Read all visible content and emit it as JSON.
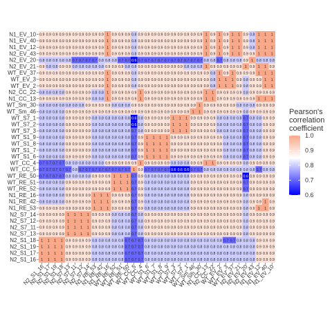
{
  "chart_data": {
    "type": "heatmap",
    "title": "",
    "xlabel": "",
    "ylabel": "",
    "row_labels": [
      "N1_EV_10",
      "N1_EV_40",
      "N1_EV_12",
      "N2_EV_43",
      "N2_EV_20",
      "N2_EV_21",
      "WT_EV_37",
      "WT_EV_3",
      "WT_EV_2",
      "N2_CC_22",
      "N1_CC_13",
      "WT_Sm_30",
      "WT_Sm_46",
      "WT_S7_1",
      "WT_S7_2",
      "WT_S7_3",
      "WT_S1_9",
      "WT_S1_8",
      "WT_S1_7",
      "WT_S1_6",
      "WT_CC_4",
      "WT_CC_5",
      "WT_RE_50",
      "WT_RE_51",
      "WT_RE_52",
      "N1_RE_16",
      "N1_RE_42",
      "N1_RE_53",
      "N2_S7_14",
      "N2_S7_12",
      "N2_S7_11",
      "N2_S7_13",
      "N2_S1_18",
      "N2_S1_19",
      "N2_S1_17",
      "N2_S1_16"
    ],
    "col_labels": [
      "N2_S1_16",
      "N2_S1_17",
      "N2_S1_19",
      "N2_S1_18",
      "N2_S7_13",
      "N2_S7_11",
      "N2_S7_12",
      "N2_S7_14",
      "N1_RE_53",
      "N1_RE_42",
      "N1_RE_16",
      "WT_RE_52",
      "WT_RE_51",
      "WT_RE_50",
      "WT_CC_5",
      "WT_CC_4",
      "WT_S1_6",
      "WT_S1_7",
      "WT_S1_8",
      "WT_S1_9",
      "WT_S7_3",
      "WT_S7_2",
      "WT_S7_1",
      "WT_Sm_46",
      "WT_Sm_30",
      "N1_CC_13",
      "N2_CC_22",
      "WT_EV_2",
      "WT_EV_3",
      "WT_EV_37",
      "N2_EV_21",
      "N2_EV_20",
      "N2_EV_43",
      "N1_EV_12",
      "N1_EV_40",
      "N1_EV_10"
    ],
    "legend": {
      "title": "Pearson's\ncorrelation\ncoefficient",
      "ticks": [
        1.0,
        0.9,
        0.8,
        0.7,
        0.6
      ],
      "tick_labels": [
        "1.0",
        "0.9",
        "0.8",
        "0.7",
        "0.6"
      ],
      "range": [
        0.6,
        1.0
      ],
      "position": "right"
    },
    "colors": {
      "low": "#0000ff",
      "mid": "#ffffff",
      "high": "#f8a889",
      "midpoint": 0.85
    },
    "grid": false,
    "values": [
      [
        0.9,
        0.9,
        0.9,
        0.9,
        0.9,
        0.9,
        0.9,
        0.9,
        0.9,
        0.9,
        1,
        0.9,
        0.9,
        0.9,
        0.8,
        0.9,
        0.9,
        0.9,
        0.9,
        0.9,
        0.9,
        0.9,
        0.9,
        0.9,
        0.9,
        1,
        0.9,
        1,
        0.9,
        1,
        1,
        0.9,
        0.8,
        1,
        1,
        1
      ],
      [
        0.9,
        0.9,
        0.9,
        0.9,
        0.9,
        0.9,
        0.9,
        0.9,
        0.9,
        0.9,
        1,
        0.9,
        0.9,
        0.9,
        0.8,
        0.9,
        0.9,
        0.9,
        0.9,
        0.9,
        0.9,
        0.9,
        0.9,
        0.9,
        0.9,
        1,
        0.9,
        1,
        0.9,
        1,
        1,
        0.9,
        0.8,
        1,
        1,
        1
      ],
      [
        0.9,
        0.9,
        0.9,
        0.9,
        0.9,
        0.9,
        0.9,
        0.9,
        0.9,
        0.9,
        1,
        0.9,
        0.9,
        0.9,
        0.8,
        0.9,
        0.9,
        0.9,
        0.9,
        0.9,
        0.9,
        0.9,
        0.9,
        0.9,
        0.9,
        1,
        0.9,
        1,
        0.9,
        1,
        1,
        0.9,
        0.8,
        1,
        1,
        1
      ],
      [
        0.9,
        0.9,
        0.9,
        0.9,
        0.9,
        0.9,
        0.9,
        0.9,
        0.9,
        0.9,
        1,
        0.9,
        0.9,
        0.9,
        0.8,
        0.9,
        0.9,
        0.9,
        0.9,
        0.9,
        0.9,
        0.9,
        0.9,
        0.9,
        0.9,
        1,
        0.9,
        1,
        0.9,
        1,
        1,
        0.9,
        0.9,
        1,
        1,
        1
      ],
      [
        0.8,
        0.8,
        0.8,
        0.8,
        0.8,
        0.7,
        0.7,
        0.7,
        0.7,
        0.8,
        0.8,
        0.8,
        0.7,
        0.7,
        0.6,
        0.7,
        0.7,
        0.7,
        0.7,
        0.7,
        0.7,
        0.7,
        0.7,
        0.7,
        0.7,
        0.8,
        0.8,
        0.7,
        0.8,
        0.8,
        0.8,
        0.9,
        1,
        0.8,
        0.8,
        0.8
      ],
      [
        0.9,
        0.8,
        0.8,
        0.9,
        0.9,
        0.8,
        0.8,
        0.8,
        0.8,
        0.8,
        0.9,
        0.9,
        0.9,
        0.8,
        0.8,
        0.9,
        0.9,
        0.9,
        0.9,
        0.9,
        0.9,
        0.9,
        0.8,
        0.8,
        0.8,
        1,
        0.9,
        0.9,
        0.9,
        0.9,
        0.9,
        1,
        0.9,
        1,
        1,
        0.9
      ],
      [
        0.9,
        0.9,
        0.9,
        0.9,
        0.9,
        0.9,
        0.9,
        0.9,
        0.9,
        0.9,
        1,
        0.9,
        0.9,
        0.9,
        0.8,
        0.9,
        0.9,
        0.9,
        0.9,
        0.9,
        0.9,
        0.9,
        0.9,
        0.9,
        0.9,
        0.9,
        0.8,
        1,
        0.9,
        1,
        0.9,
        0.9,
        0.9,
        1,
        1,
        1
      ],
      [
        0.9,
        0.9,
        0.9,
        0.9,
        0.9,
        0.9,
        0.9,
        0.9,
        0.9,
        0.9,
        1,
        0.9,
        0.9,
        0.9,
        0.8,
        0.9,
        0.9,
        0.9,
        0.9,
        0.9,
        0.9,
        0.9,
        0.9,
        0.9,
        0.9,
        0.9,
        0.8,
        1,
        1,
        1,
        0.9,
        0.8,
        0.9,
        0.9,
        1,
        1
      ],
      [
        0.9,
        0.9,
        0.9,
        0.9,
        0.9,
        0.9,
        0.9,
        0.9,
        0.9,
        0.9,
        1,
        0.9,
        0.9,
        0.9,
        0.8,
        0.9,
        0.9,
        0.9,
        0.9,
        0.9,
        0.9,
        0.9,
        0.9,
        0.9,
        0.9,
        0.9,
        0.8,
        1,
        1,
        1,
        0.9,
        0.8,
        0.9,
        0.9,
        1,
        1
      ],
      [
        0.8,
        0.8,
        0.8,
        0.8,
        0.9,
        0.9,
        0.9,
        0.9,
        0.8,
        0.8,
        1,
        0.9,
        0.9,
        0.9,
        0.9,
        1,
        0.9,
        0.9,
        0.9,
        0.9,
        0.9,
        0.9,
        0.9,
        0.9,
        0.9,
        1,
        1,
        0.9,
        0.9,
        0.9,
        0.9,
        0.8,
        0.9,
        0.9,
        0.9,
        0.9
      ],
      [
        0.9,
        0.9,
        0.9,
        0.9,
        0.9,
        0.9,
        0.9,
        0.9,
        0.8,
        0.8,
        1,
        0.9,
        0.9,
        0.9,
        0.9,
        1,
        0.9,
        0.9,
        0.9,
        0.9,
        0.9,
        0.9,
        0.9,
        0.9,
        0.9,
        1,
        1,
        0.9,
        0.9,
        0.9,
        0.9,
        0.9,
        0.9,
        1,
        1,
        1
      ],
      [
        0.8,
        0.8,
        0.8,
        0.8,
        0.8,
        0.8,
        0.8,
        0.9,
        0.9,
        0.9,
        0.9,
        0.8,
        0.8,
        0.8,
        0.9,
        0.9,
        0.9,
        0.9,
        0.9,
        0.9,
        0.9,
        0.9,
        0.9,
        0.9,
        1,
        0.9,
        0.9,
        0.9,
        0.9,
        0.9,
        0.8,
        0.8,
        0.8,
        0.9,
        0.9,
        0.9
      ],
      [
        0.8,
        0.8,
        0.8,
        0.8,
        0.9,
        0.9,
        0.9,
        0.9,
        0.9,
        0.9,
        0.9,
        0.9,
        0.9,
        0.9,
        0.9,
        0.9,
        0.9,
        0.9,
        0.9,
        0.9,
        0.9,
        0.9,
        0.9,
        1,
        1,
        0.9,
        0.9,
        0.9,
        0.9,
        0.9,
        0.9,
        0.8,
        0.9,
        0.9,
        0.9,
        0.9
      ],
      [
        0.8,
        0.8,
        0.8,
        0.8,
        0.9,
        0.9,
        0.9,
        0.9,
        0.8,
        0.8,
        0.8,
        0.8,
        0.8,
        0.8,
        0.6,
        0.8,
        0.9,
        0.9,
        0.9,
        0.9,
        1,
        1,
        1,
        0.9,
        0.9,
        0.9,
        0.9,
        0.8,
        0.8,
        0.8,
        0.8,
        0.7,
        0.8,
        0.8,
        0.9,
        0.9
      ],
      [
        0.8,
        0.8,
        0.8,
        0.8,
        0.9,
        0.9,
        0.9,
        0.9,
        0.8,
        0.8,
        0.8,
        0.8,
        0.8,
        0.8,
        0.6,
        0.8,
        0.9,
        0.9,
        0.9,
        0.9,
        1,
        1,
        1,
        0.9,
        0.9,
        0.9,
        0.9,
        0.8,
        0.8,
        0.8,
        0.8,
        0.7,
        0.8,
        0.8,
        0.9,
        0.9
      ],
      [
        0.8,
        0.8,
        0.8,
        0.8,
        0.9,
        0.9,
        0.9,
        0.9,
        0.8,
        0.8,
        0.8,
        0.8,
        0.8,
        0.8,
        0.7,
        0.8,
        0.9,
        0.9,
        0.9,
        0.9,
        1,
        1,
        1,
        0.9,
        0.9,
        0.9,
        0.9,
        0.8,
        0.8,
        0.8,
        0.8,
        0.7,
        0.8,
        0.8,
        0.9,
        0.9
      ],
      [
        0.8,
        0.8,
        0.8,
        0.8,
        0.9,
        0.9,
        0.9,
        0.9,
        0.8,
        0.8,
        0.8,
        0.8,
        0.8,
        0.8,
        0.7,
        0.9,
        1,
        1,
        1,
        1,
        0.9,
        0.9,
        0.9,
        0.9,
        0.9,
        0.9,
        0.9,
        0.9,
        0.8,
        0.8,
        0.8,
        0.7,
        0.8,
        0.8,
        0.9,
        0.9
      ],
      [
        0.8,
        0.8,
        0.8,
        0.8,
        0.9,
        0.9,
        0.9,
        0.9,
        0.8,
        0.8,
        0.8,
        0.8,
        0.8,
        0.8,
        0.7,
        0.9,
        1,
        1,
        1,
        1,
        0.9,
        0.9,
        0.9,
        0.9,
        0.9,
        0.9,
        0.9,
        0.9,
        0.8,
        0.8,
        0.8,
        0.7,
        0.8,
        0.8,
        0.9,
        0.9
      ],
      [
        0.8,
        0.8,
        0.8,
        0.8,
        0.9,
        0.9,
        0.9,
        0.9,
        0.8,
        0.8,
        0.8,
        0.8,
        0.8,
        0.8,
        0.7,
        0.9,
        1,
        1,
        1,
        1,
        0.9,
        0.9,
        0.9,
        0.9,
        0.9,
        0.9,
        0.9,
        0.9,
        0.8,
        0.8,
        0.8,
        0.7,
        0.8,
        0.8,
        0.9,
        0.9
      ],
      [
        0.8,
        0.8,
        0.8,
        0.8,
        0.9,
        0.9,
        0.9,
        0.9,
        0.8,
        0.8,
        0.8,
        0.8,
        0.8,
        0.8,
        0.7,
        0.9,
        1,
        1,
        1,
        1,
        0.9,
        0.9,
        0.9,
        0.9,
        0.9,
        0.9,
        0.9,
        0.9,
        0.8,
        0.8,
        0.8,
        0.7,
        0.8,
        0.8,
        0.9,
        0.9
      ],
      [
        0.7,
        0.7,
        0.7,
        0.7,
        0.8,
        0.8,
        0.8,
        0.8,
        0.8,
        0.8,
        0.9,
        0.9,
        0.9,
        0.9,
        0.9,
        1,
        0.9,
        0.9,
        0.9,
        0.9,
        0.8,
        0.8,
        0.8,
        0.9,
        0.9,
        1,
        1,
        0.9,
        0.9,
        0.9,
        0.9,
        0.8,
        0.9,
        0.9,
        0.9,
        0.9
      ],
      [
        0.7,
        0.7,
        0.7,
        0.7,
        0.7,
        0.8,
        0.7,
        0.7,
        0.7,
        0.7,
        0.7,
        0.7,
        0.7,
        0.7,
        1,
        0.9,
        0.7,
        0.7,
        0.7,
        0.7,
        0.6,
        0.6,
        0.6,
        0.7,
        0.7,
        0.8,
        0.8,
        0.8,
        0.8,
        0.8,
        0.8,
        0.8,
        0.8,
        0.7,
        0.8,
        0.8
      ],
      [
        0.7,
        0.7,
        0.7,
        0.7,
        0.8,
        0.8,
        0.8,
        0.8,
        0.9,
        0.9,
        0.9,
        1,
        1,
        1,
        0.7,
        0.9,
        0.8,
        0.8,
        0.8,
        0.8,
        0.8,
        0.8,
        0.8,
        0.9,
        0.9,
        0.9,
        0.9,
        0.9,
        0.9,
        0.9,
        0.9,
        0.6,
        0.9,
        0.9,
        0.9,
        0.9
      ],
      [
        0.8,
        0.8,
        0.8,
        0.8,
        0.9,
        0.9,
        0.9,
        0.9,
        0.9,
        0.9,
        0.9,
        1,
        1,
        1,
        0.7,
        0.9,
        0.8,
        0.8,
        0.8,
        0.8,
        0.8,
        0.8,
        0.8,
        0.9,
        0.9,
        0.9,
        0.9,
        0.9,
        0.9,
        0.9,
        0.9,
        0.7,
        0.9,
        0.9,
        0.9,
        0.9
      ],
      [
        0.8,
        0.8,
        0.8,
        0.8,
        0.9,
        0.9,
        0.9,
        0.9,
        0.9,
        0.9,
        0.9,
        1,
        1,
        1,
        0.7,
        0.9,
        0.8,
        0.8,
        0.8,
        0.8,
        0.8,
        0.8,
        0.8,
        0.9,
        0.9,
        0.9,
        0.9,
        0.9,
        0.9,
        0.9,
        0.9,
        0.7,
        0.9,
        0.9,
        0.9,
        0.9
      ],
      [
        0.8,
        0.8,
        0.8,
        0.8,
        0.9,
        0.9,
        0.9,
        0.9,
        1,
        1,
        1,
        0.9,
        0.9,
        0.9,
        0.7,
        0.9,
        0.8,
        0.8,
        0.8,
        0.8,
        0.8,
        0.8,
        0.8,
        0.9,
        0.9,
        0.9,
        0.9,
        0.9,
        0.9,
        0.9,
        0.9,
        0.8,
        0.9,
        0.9,
        0.9,
        0.9
      ],
      [
        0.8,
        0.8,
        0.8,
        0.8,
        0.9,
        0.9,
        0.9,
        0.9,
        1,
        1,
        1,
        0.9,
        0.9,
        0.9,
        0.7,
        0.9,
        0.8,
        0.8,
        0.8,
        0.8,
        0.8,
        0.8,
        0.8,
        0.9,
        0.9,
        0.9,
        0.9,
        0.9,
        0.9,
        0.9,
        0.9,
        0.8,
        0.9,
        0.9,
        1,
        0.9
      ],
      [
        0.9,
        0.9,
        0.9,
        0.9,
        0.9,
        0.9,
        0.9,
        0.9,
        1,
        1,
        1,
        0.9,
        0.9,
        0.9,
        0.7,
        0.9,
        0.8,
        0.8,
        0.8,
        0.8,
        0.8,
        0.8,
        0.8,
        0.9,
        0.9,
        0.9,
        0.9,
        0.9,
        0.9,
        0.9,
        0.9,
        0.8,
        0.9,
        1,
        1,
        0.9
      ],
      [
        0.9,
        0.9,
        0.9,
        0.9,
        1,
        1,
        1,
        1,
        0.9,
        0.9,
        0.9,
        0.8,
        0.8,
        0.8,
        0.7,
        0.8,
        0.9,
        0.9,
        0.9,
        0.9,
        0.9,
        0.9,
        0.9,
        0.9,
        0.9,
        0.9,
        0.9,
        0.9,
        0.9,
        0.9,
        0.9,
        0.8,
        0.9,
        0.9,
        0.9,
        0.9
      ],
      [
        0.9,
        0.9,
        0.9,
        0.9,
        1,
        1,
        1,
        1,
        0.9,
        0.9,
        0.9,
        0.8,
        0.8,
        0.8,
        0.7,
        0.8,
        0.9,
        0.9,
        0.9,
        0.9,
        0.9,
        0.9,
        0.9,
        0.9,
        0.9,
        0.9,
        0.9,
        0.9,
        0.9,
        0.9,
        0.9,
        0.8,
        0.9,
        0.9,
        0.9,
        0.9
      ],
      [
        0.9,
        0.9,
        0.9,
        0.9,
        1,
        1,
        1,
        1,
        0.9,
        0.9,
        0.9,
        0.8,
        0.8,
        0.8,
        0.7,
        0.8,
        0.9,
        0.9,
        0.9,
        0.9,
        0.9,
        0.9,
        0.9,
        0.9,
        0.9,
        0.9,
        0.9,
        0.9,
        0.9,
        0.9,
        0.9,
        0.8,
        0.9,
        0.9,
        0.9,
        0.9
      ],
      [
        0.9,
        0.9,
        0.9,
        0.9,
        1,
        1,
        1,
        1,
        0.9,
        0.9,
        0.9,
        0.8,
        0.8,
        0.8,
        0.7,
        0.8,
        0.9,
        0.9,
        0.9,
        0.9,
        0.9,
        0.9,
        0.9,
        0.9,
        0.9,
        0.9,
        0.9,
        0.9,
        0.9,
        0.9,
        0.9,
        0.8,
        0.9,
        0.9,
        0.9,
        0.9
      ],
      [
        1,
        1,
        1,
        1,
        0.9,
        0.9,
        0.9,
        0.9,
        0.8,
        0.8,
        0.8,
        0.8,
        0.8,
        0.7,
        0.7,
        0.7,
        0.8,
        0.8,
        0.8,
        0.8,
        0.8,
        0.8,
        0.8,
        0.8,
        0.8,
        0.8,
        0.8,
        0.8,
        0.7,
        0.7,
        0.8,
        0.8,
        0.8,
        0.9,
        0.9,
        0.9
      ],
      [
        1,
        1,
        1,
        1,
        0.9,
        0.9,
        0.9,
        0.9,
        0.8,
        0.8,
        0.8,
        0.8,
        0.8,
        0.7,
        0.7,
        0.7,
        0.8,
        0.8,
        0.8,
        0.8,
        0.8,
        0.8,
        0.8,
        0.8,
        0.8,
        0.8,
        0.8,
        0.8,
        0.8,
        0.8,
        0.8,
        0.8,
        0.8,
        0.9,
        0.9,
        0.9
      ],
      [
        1,
        1,
        1,
        1,
        0.9,
        0.9,
        0.9,
        0.9,
        0.8,
        0.8,
        0.8,
        0.8,
        0.8,
        0.7,
        0.7,
        0.7,
        0.8,
        0.8,
        0.8,
        0.8,
        0.8,
        0.8,
        0.8,
        0.8,
        0.8,
        0.8,
        0.8,
        0.8,
        0.8,
        0.8,
        0.8,
        0.8,
        0.8,
        0.9,
        0.9,
        0.9
      ],
      [
        1,
        1,
        1,
        1,
        0.9,
        0.9,
        0.9,
        0.9,
        0.8,
        0.8,
        0.8,
        0.8,
        0.8,
        0.7,
        0.7,
        0.7,
        0.8,
        0.8,
        0.8,
        0.8,
        0.8,
        0.8,
        0.8,
        0.8,
        0.8,
        0.8,
        0.8,
        0.8,
        0.8,
        0.8,
        0.8,
        0.8,
        0.8,
        0.9,
        0.9,
        0.9
      ]
    ]
  }
}
